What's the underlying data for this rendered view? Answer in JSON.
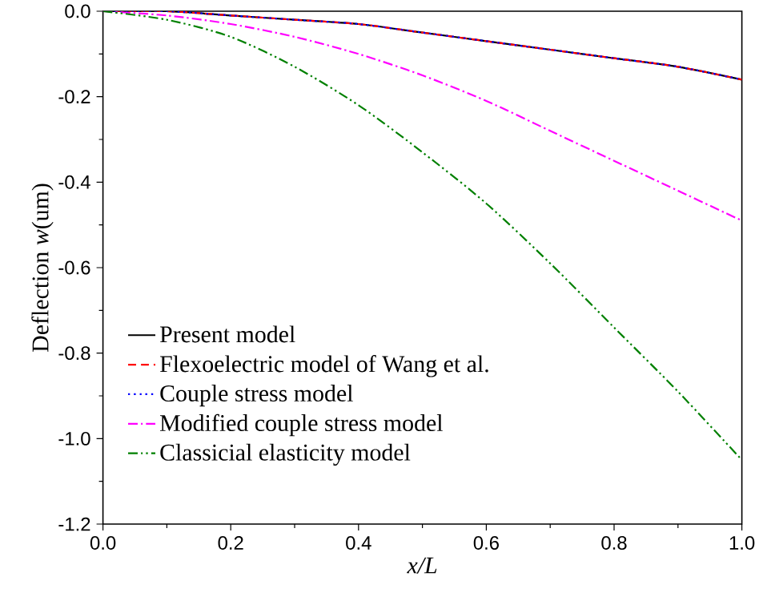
{
  "chart_data": {
    "type": "line",
    "xlabel": "x/L",
    "ylabel": "Deflection *w*(um)",
    "x": [
      0,
      0.1,
      0.2,
      0.3,
      0.4,
      0.5,
      0.6,
      0.7,
      0.8,
      0.9,
      1.0
    ],
    "xlim": [
      0,
      1
    ],
    "ylim": [
      -1.2,
      0
    ],
    "xticks": [
      {
        "value": 0,
        "label": "0.0"
      },
      0.2,
      0.4,
      0.6,
      0.8,
      {
        "value": 1,
        "label": "1.0"
      }
    ],
    "yticks": [
      {
        "value": -1.2,
        "label": "-1.2"
      },
      {
        "value": -1.0,
        "label": "-1.0"
      },
      {
        "value": -0.8,
        "label": "-0.8"
      },
      {
        "value": -0.6,
        "label": "-0.6"
      },
      {
        "value": -0.4,
        "label": "-0.4"
      },
      {
        "value": -0.2,
        "label": "-0.2"
      },
      {
        "value": 0,
        "label": "0.0"
      }
    ],
    "grid": false,
    "legend": "left",
    "marker": "none",
    "series": [
      {
        "name": "Present model",
        "color": "#000000",
        "line_style": "solid",
        "values": [
          0,
          0,
          -0.01,
          -0.02,
          -0.03,
          -0.05,
          -0.07,
          -0.09,
          -0.11,
          -0.13,
          -0.16
        ]
      },
      {
        "name": "Flexoelectric model of Wang et al.",
        "color": "#ff0000",
        "line_style": "dashed",
        "values": [
          0,
          0,
          -0.01,
          -0.02,
          -0.03,
          -0.05,
          -0.07,
          -0.09,
          -0.11,
          -0.13,
          -0.16
        ]
      },
      {
        "name": "Couple stress model",
        "color": "#0000ff",
        "line_style": "dotted",
        "values": [
          0,
          0,
          -0.01,
          -0.02,
          -0.03,
          -0.05,
          -0.07,
          -0.09,
          -0.11,
          -0.13,
          -0.16
        ]
      },
      {
        "name": "Modified couple stress model",
        "color": "#ff00ff",
        "line_style": "dashdot",
        "values": [
          0,
          -0.01,
          -0.03,
          -0.06,
          -0.1,
          -0.15,
          -0.21,
          -0.28,
          -0.35,
          -0.42,
          -0.49
        ]
      },
      {
        "name": "Classicial elasticity model",
        "color": "#008000",
        "line_style": "dashdotdot",
        "values": [
          0,
          -0.02,
          -0.06,
          -0.13,
          -0.22,
          -0.33,
          -0.45,
          -0.59,
          -0.74,
          -0.89,
          -1.05
        ]
      }
    ]
  }
}
